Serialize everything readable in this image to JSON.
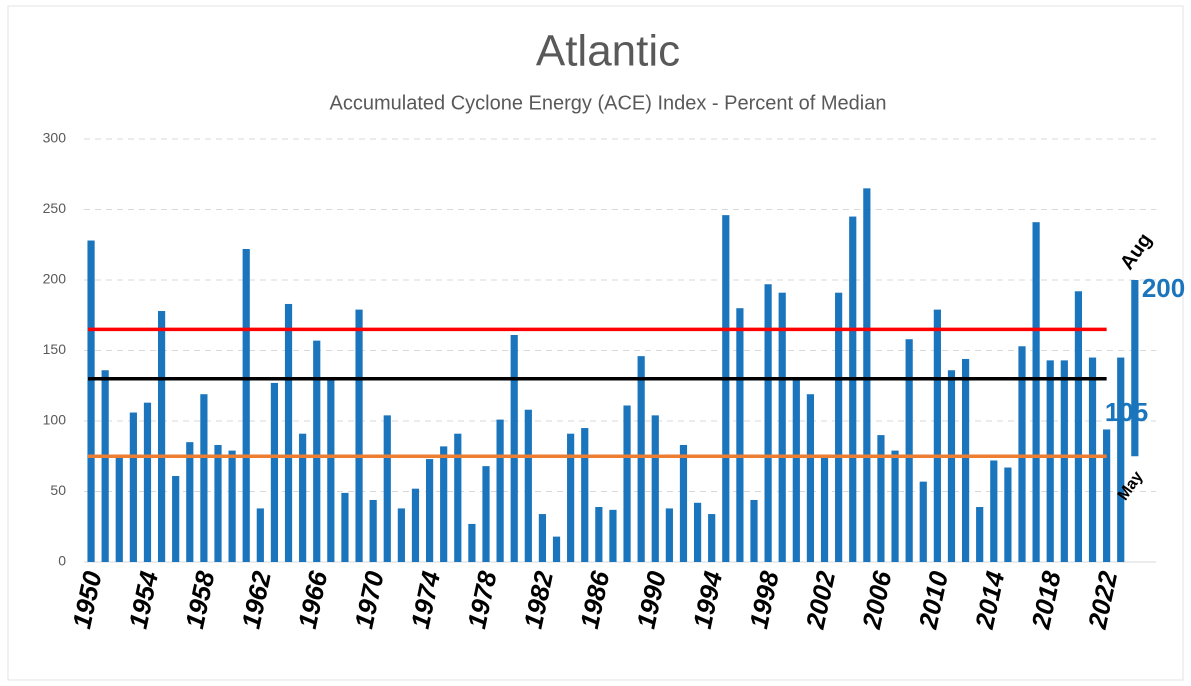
{
  "chart_data": {
    "type": "bar",
    "title": "Atlantic",
    "subtitle": "Accumulated Cyclone Energy (ACE) Index - Percent of Median",
    "categories": [
      "1950",
      null,
      null,
      null,
      "1954",
      null,
      null,
      null,
      "1958",
      null,
      null,
      null,
      "1962",
      null,
      null,
      null,
      "1966",
      null,
      null,
      null,
      "1970",
      null,
      null,
      null,
      "1974",
      null,
      null,
      null,
      "1978",
      null,
      null,
      null,
      "1982",
      null,
      null,
      null,
      "1986",
      null,
      null,
      null,
      "1990",
      null,
      null,
      null,
      "1994",
      null,
      null,
      null,
      "1998",
      null,
      null,
      null,
      "2002",
      null,
      null,
      null,
      "2006",
      null,
      null,
      null,
      "2010",
      null,
      null,
      null,
      "2014",
      null,
      null,
      null,
      "2018",
      null,
      null,
      null,
      "2022",
      null,
      null,
      null
    ],
    "values": [
      228,
      136,
      75,
      106,
      113,
      178,
      61,
      85,
      119,
      83,
      79,
      222,
      38,
      127,
      183,
      91,
      157,
      130,
      49,
      179,
      44,
      104,
      38,
      52,
      73,
      82,
      91,
      27,
      68,
      101,
      161,
      108,
      34,
      18,
      91,
      95,
      39,
      37,
      111,
      146,
      104,
      38,
      83,
      42,
      34,
      246,
      180,
      44,
      197,
      191,
      130,
      119,
      75,
      191,
      245,
      265,
      90,
      79,
      158,
      57,
      179,
      136,
      144,
      39,
      72,
      67,
      153,
      241,
      143,
      143,
      192,
      145,
      94,
      145,
      null,
      null
    ],
    "color": "#1b75bc",
    "ylim": [
      0,
      300
    ],
    "yticks": [
      0,
      50,
      100,
      150,
      200,
      250,
      300
    ],
    "grid": true,
    "reference_lines": [
      {
        "value": 165,
        "color": "#ff0000"
      },
      {
        "value": 130,
        "color": "#000000"
      },
      {
        "value": 75,
        "color": "#ed7d31"
      }
    ],
    "forecast_range": {
      "low": 75,
      "high": 200,
      "high_value_label": "200",
      "mid": 105,
      "mid_value_label": "105",
      "high_label": "Aug",
      "low_label": "May",
      "color": "#1b75bc"
    }
  }
}
